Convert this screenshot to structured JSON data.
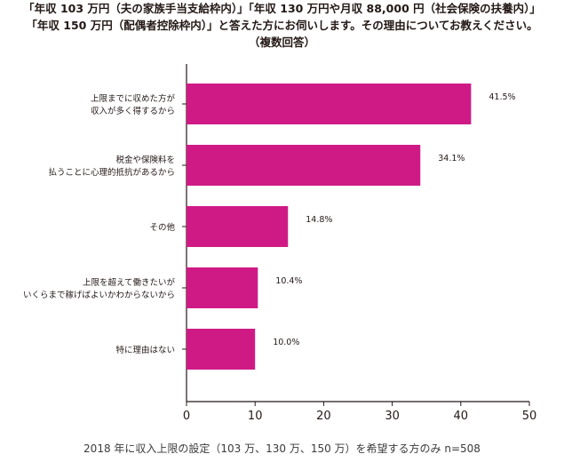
{
  "chart_data": {
    "type": "bar",
    "orientation": "horizontal",
    "title_lines": [
      "「年収 103 万円（夫の家族手当支給枠内）」「年収 130 万円や月収 88,000 円（社会保険の扶養内）」",
      "「年収 150 万円（配偶者控除枠内）」と答えた方にお伺いします。その理由についてお教えください。",
      "（複数回答）"
    ],
    "categories": [
      [
        "上限までに収めた方が",
        "収入が多く得するから"
      ],
      [
        "税金や保険料を",
        "払うことに心理的抵抗があるから"
      ],
      [
        "その他"
      ],
      [
        "上限を超えて働きたいが",
        "いくらまで稼げばよいかわからないから"
      ],
      [
        "特に理由はない"
      ]
    ],
    "values": [
      41.5,
      34.1,
      14.8,
      10.4,
      10.0
    ],
    "data_labels": [
      "41.5%",
      "34.1%",
      "14.8%",
      "10.4%",
      "10.0%"
    ],
    "xlim": [
      0,
      50
    ],
    "xticks": [
      "0",
      "10",
      "20",
      "30",
      "40",
      "50"
    ],
    "bar_color": "#cf1a86",
    "grid": false,
    "footnote": "2018 年に収入上限の設定（103 万、130 万、150 万）を希望する方のみ n=508"
  }
}
